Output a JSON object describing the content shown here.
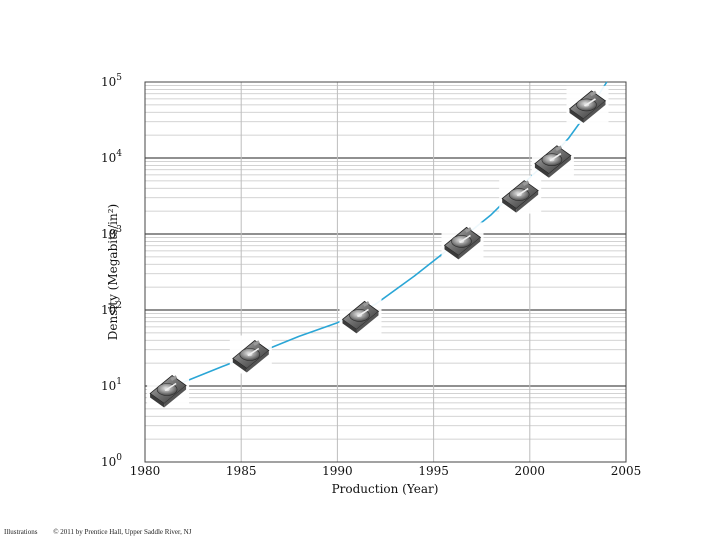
{
  "chart_data": {
    "type": "line",
    "title": "",
    "xlabel": "Production (Year)",
    "ylabel": "Density (Megabits/in²)",
    "xlim": [
      1980,
      2005
    ],
    "ylim": [
      1,
      100000
    ],
    "yscale": "log",
    "grid": true,
    "line_color": "#2aa6d6",
    "x_ticks": [
      "1980",
      "1985",
      "1990",
      "1995",
      "2000",
      "2005"
    ],
    "y_ticks": [
      {
        "base": "10",
        "exp": "0"
      },
      {
        "base": "10",
        "exp": "1"
      },
      {
        "base": "10",
        "exp": "2"
      },
      {
        "base": "10",
        "exp": "3"
      },
      {
        "base": "10",
        "exp": "4"
      },
      {
        "base": "10",
        "exp": "5"
      }
    ],
    "series": [
      {
        "x": [
          1981.5,
          1984,
          1986,
          1988,
          1990,
          1992,
          1994,
          1996,
          1998,
          1999,
          2000,
          2001,
          2002,
          2003,
          2004
        ],
        "y": [
          10,
          18,
          28,
          45,
          68,
          120,
          280,
          700,
          1800,
          3200,
          5500,
          9500,
          18000,
          40000,
          100000
        ]
      }
    ],
    "markers": {
      "icon": "hard-drive-icon",
      "x": [
        1981.2,
        1985.5,
        1991.2,
        1996.5,
        1999.5,
        2001.2,
        2003.0
      ],
      "y": [
        9,
        26,
        85,
        800,
        3300,
        9500,
        50000
      ]
    }
  },
  "footer": {
    "left": "Illustrations",
    "right": "© 2011 by Prentice Hall, Upper Saddle River, NJ"
  }
}
